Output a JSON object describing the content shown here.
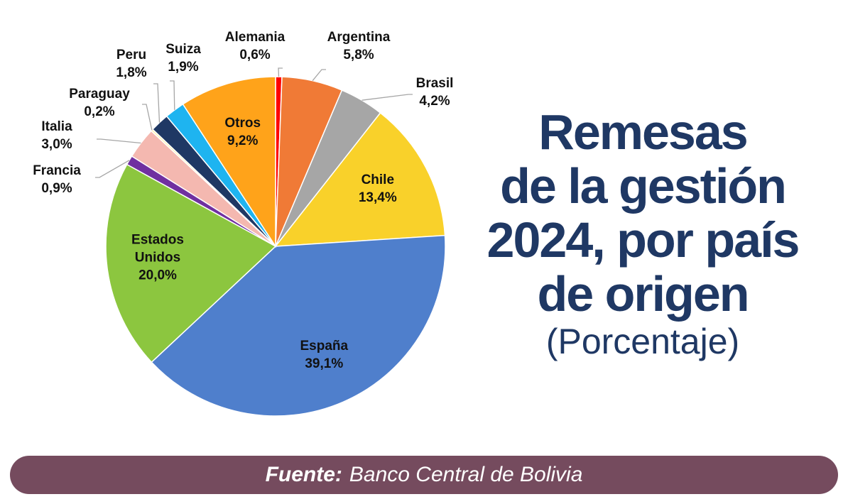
{
  "chart_data": {
    "type": "pie",
    "slices": [
      {
        "label": "Alemania",
        "value": 0.6,
        "value_text": "0,6%",
        "color": "#ff0000"
      },
      {
        "label": "Argentina",
        "value": 5.8,
        "value_text": "5,8%",
        "color": "#f07a36"
      },
      {
        "label": "Brasil",
        "value": 4.2,
        "value_text": "4,2%",
        "color": "#a6a6a6"
      },
      {
        "label": "Chile",
        "value": 13.4,
        "value_text": "13,4%",
        "color": "#f9d12a"
      },
      {
        "label": "España",
        "value": 39.1,
        "value_text": "39,1%",
        "color": "#4f7fcc"
      },
      {
        "label": "Estados Unidos",
        "value": 20.0,
        "value_text": "20,0%",
        "color": "#8cc63f"
      },
      {
        "label": "Francia",
        "value": 0.9,
        "value_text": "0,9%",
        "color": "#7030a0"
      },
      {
        "label": "Italia",
        "value": 3.0,
        "value_text": "3,0%",
        "color": "#f4b8b0"
      },
      {
        "label": "Paraguay",
        "value": 0.2,
        "value_text": "0,2%",
        "color": "#fff2b0"
      },
      {
        "label": "Peru",
        "value": 1.8,
        "value_text": "1,8%",
        "color": "#1f3864"
      },
      {
        "label": "Suiza",
        "value": 1.9,
        "value_text": "1,9%",
        "color": "#1eb4f0"
      },
      {
        "label": "Otros",
        "value": 9.2,
        "value_text": "9,2%",
        "color": "#ffa31a"
      }
    ],
    "label_style": "inside for large slices, outside with leader lines for small slices"
  },
  "title": {
    "lines": [
      "Remesas",
      "de la gestión",
      "2024, por país",
      "de origen"
    ],
    "subtitle": "(Porcentaje)",
    "color": "#1f3864"
  },
  "source": {
    "label": "Fuente:",
    "text": "Banco Central de Bolivia",
    "bar_color": "#754b5e"
  }
}
